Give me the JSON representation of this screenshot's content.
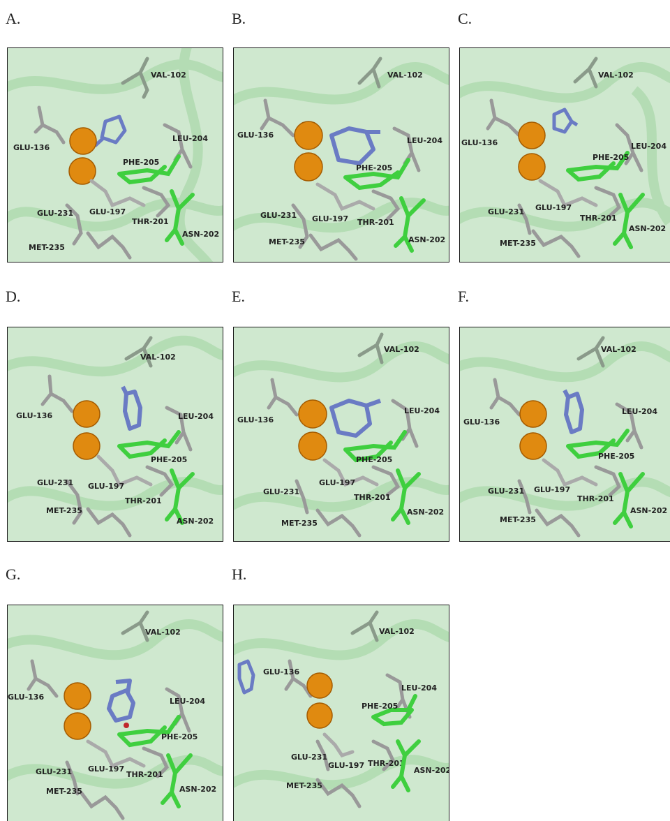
{
  "panels": [
    {
      "label": "A.",
      "residues": {
        "val102": "VAL-102",
        "glu136": "GLU-136",
        "leu204": "LEU-204",
        "phe205": "PHE-205",
        "glu231": "GLU-231",
        "glu197": "GLU-197",
        "thr201": "THR-201",
        "asn202": "ASN-202",
        "met235": "MET-235"
      }
    },
    {
      "label": "B.",
      "residues": {
        "val102": "VAL-102",
        "glu136": "GLU-136",
        "leu204": "LEU-204",
        "phe205": "PHE-205",
        "glu231": "GLU-231",
        "glu197": "GLU-197",
        "thr201": "THR-201",
        "asn202": "ASN-202",
        "met235": "MET-235"
      }
    },
    {
      "label": "C.",
      "residues": {
        "val102": "VAL-102",
        "glu136": "GLU-136",
        "leu204": "LEU-204",
        "phe205": "PHE-205",
        "glu231": "GLU-231",
        "glu197": "GLU-197",
        "thr201": "THR-201",
        "asn202": "ASN-202",
        "met235": "MET-235"
      }
    },
    {
      "label": "D.",
      "residues": {
        "val102": "VAL-102",
        "glu136": "GLU-136",
        "leu204": "LEU-204",
        "phe205": "PHE-205",
        "glu231": "GLU-231",
        "glu197": "GLU-197",
        "thr201": "THR-201",
        "asn202": "ASN-202",
        "met235": "MET-235"
      }
    },
    {
      "label": "E.",
      "residues": {
        "val102": "VAL-102",
        "glu136": "GLU-136",
        "leu204": "LEU-204",
        "phe205": "PHE-205",
        "glu231": "GLU-231",
        "glu197": "GLU-197",
        "thr201": "THR-201",
        "asn202": "ASN-202",
        "met235": "MET-235"
      }
    },
    {
      "label": "F.",
      "residues": {
        "val102": "VAL-102",
        "glu136": "GLU-136",
        "leu204": "LEU-204",
        "phe205": "PHE-205",
        "glu231": "GLU-231",
        "glu197": "GLU-197",
        "thr201": "THR-201",
        "asn202": "ASN-202",
        "met235": "MET-235"
      }
    },
    {
      "label": "G.",
      "residues": {
        "val102": "VAL-102",
        "glu136": "GLU-136",
        "leu204": "LEU-204",
        "phe205": "PHE-205",
        "glu231": "GLU-231",
        "glu197": "GLU-197",
        "thr201": "THR-201",
        "asn202": "ASN-202",
        "met235": "MET-235"
      }
    },
    {
      "label": "H.",
      "residues": {
        "val102": "VAL-102",
        "glu136": "GLU-136",
        "leu204": "LEU-204",
        "phe205": "PHE-205",
        "glu231": "GLU-231",
        "glu197": "GLU-197",
        "thr201": "THR-201",
        "asn202": "ASN-202",
        "met235": "MET-235"
      }
    }
  ],
  "colors": {
    "background_protein": "#cfe8cf",
    "metal_ion": "#e08a10",
    "ligand": "#6a7bc4",
    "residue_highlight": "#3fcf3f",
    "residue_other": "#9a9a9a"
  }
}
